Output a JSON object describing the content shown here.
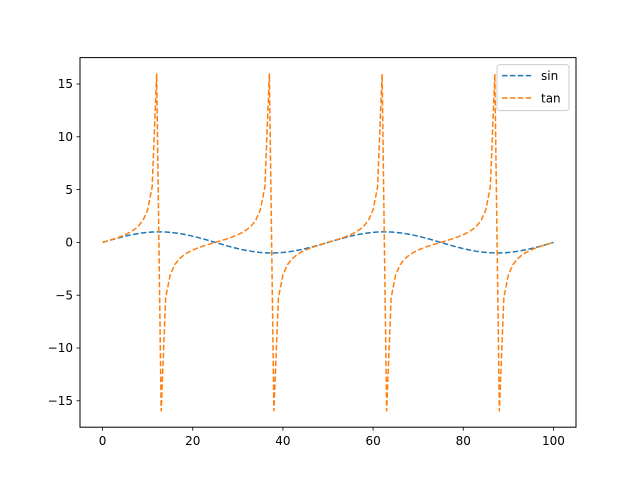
{
  "chart_data": {
    "type": "line",
    "title": "",
    "xlabel": "",
    "ylabel": "",
    "xlim": [
      -5,
      105
    ],
    "ylim": [
      -17.5,
      17.5
    ],
    "x_ticks": [
      0,
      20,
      40,
      60,
      80,
      100
    ],
    "y_ticks": [
      -15,
      -10,
      -5,
      0,
      5,
      10,
      15
    ],
    "x_tick_labels": [
      "0",
      "20",
      "40",
      "60",
      "80",
      "100"
    ],
    "y_tick_labels": [
      "−15",
      "−10",
      "−5",
      "0",
      "5",
      "10",
      "15"
    ],
    "grid": false,
    "legend": {
      "position": "upper-right",
      "entries": [
        "sin",
        "tan"
      ]
    },
    "x": [
      0,
      1,
      2,
      3,
      4,
      5,
      6,
      7,
      8,
      9,
      10,
      11,
      12,
      13,
      14,
      15,
      16,
      17,
      18,
      19,
      20,
      21,
      22,
      23,
      24,
      25,
      26,
      27,
      28,
      29,
      30,
      31,
      32,
      33,
      34,
      35,
      36,
      37,
      38,
      39,
      40,
      41,
      42,
      43,
      44,
      45,
      46,
      47,
      48,
      49,
      50,
      51,
      52,
      53,
      54,
      55,
      56,
      57,
      58,
      59,
      60,
      61,
      62,
      63,
      64,
      65,
      66,
      67,
      68,
      69,
      70,
      71,
      72,
      73,
      74,
      75,
      76,
      77,
      78,
      79,
      80,
      81,
      82,
      83,
      84,
      85,
      86,
      87,
      88,
      89,
      90,
      91,
      92,
      93,
      94,
      95,
      96,
      97,
      98,
      99,
      100
    ],
    "series": [
      {
        "name": "sin",
        "color": "#1f77b4",
        "linestyle": "dashed",
        "values": [
          0.0,
          0.127,
          0.251,
          0.368,
          0.482,
          0.588,
          0.685,
          0.771,
          0.844,
          0.905,
          0.951,
          0.982,
          0.998,
          0.998,
          0.982,
          0.951,
          0.905,
          0.844,
          0.771,
          0.685,
          0.588,
          0.482,
          0.368,
          0.251,
          0.127,
          0.0,
          -0.127,
          -0.251,
          -0.368,
          -0.482,
          -0.588,
          -0.685,
          -0.771,
          -0.844,
          -0.905,
          -0.951,
          -0.982,
          -0.998,
          -0.998,
          -0.982,
          -0.951,
          -0.905,
          -0.844,
          -0.771,
          -0.685,
          -0.588,
          -0.482,
          -0.368,
          -0.251,
          -0.127,
          0.0,
          0.127,
          0.251,
          0.368,
          0.482,
          0.588,
          0.685,
          0.771,
          0.844,
          0.905,
          0.951,
          0.982,
          0.998,
          0.998,
          0.982,
          0.951,
          0.905,
          0.844,
          0.771,
          0.685,
          0.588,
          0.482,
          0.368,
          0.251,
          0.127,
          0.0,
          -0.127,
          -0.251,
          -0.368,
          -0.482,
          -0.588,
          -0.685,
          -0.771,
          -0.844,
          -0.905,
          -0.951,
          -0.982,
          -0.998,
          -0.998,
          -0.982,
          -0.951,
          -0.905,
          -0.844,
          -0.771,
          -0.685,
          -0.588,
          -0.482,
          -0.368,
          -0.251,
          -0.127,
          0.0
        ]
      },
      {
        "name": "tan",
        "color": "#ff7f0e",
        "linestyle": "dashed",
        "values": [
          0.0,
          0.127,
          0.259,
          0.396,
          0.551,
          0.727,
          0.939,
          1.208,
          1.57,
          2.118,
          3.078,
          5.242,
          15.95,
          -15.95,
          -5.242,
          -3.078,
          -2.118,
          -1.57,
          -1.208,
          -0.939,
          -0.727,
          -0.551,
          -0.396,
          -0.259,
          -0.127,
          0.0,
          0.127,
          0.259,
          0.396,
          0.551,
          0.727,
          0.939,
          1.208,
          1.57,
          2.118,
          3.078,
          5.242,
          15.95,
          -15.95,
          -5.242,
          -3.078,
          -2.118,
          -1.57,
          -1.208,
          -0.939,
          -0.727,
          -0.551,
          -0.396,
          -0.259,
          -0.127,
          0.0,
          0.127,
          0.259,
          0.396,
          0.551,
          0.727,
          0.939,
          1.208,
          1.57,
          2.118,
          3.078,
          5.242,
          15.95,
          -15.95,
          -5.242,
          -3.078,
          -2.118,
          -1.57,
          -1.208,
          -0.939,
          -0.727,
          -0.551,
          -0.396,
          -0.259,
          -0.127,
          0.0,
          0.127,
          0.259,
          0.396,
          0.551,
          0.727,
          0.939,
          1.208,
          1.57,
          2.118,
          3.078,
          5.242,
          15.95,
          -15.95,
          -5.242,
          -3.078,
          -2.118,
          -1.57,
          -1.208,
          -0.939,
          -0.727,
          -0.551,
          -0.396,
          -0.259,
          -0.127,
          0.0
        ]
      }
    ]
  }
}
